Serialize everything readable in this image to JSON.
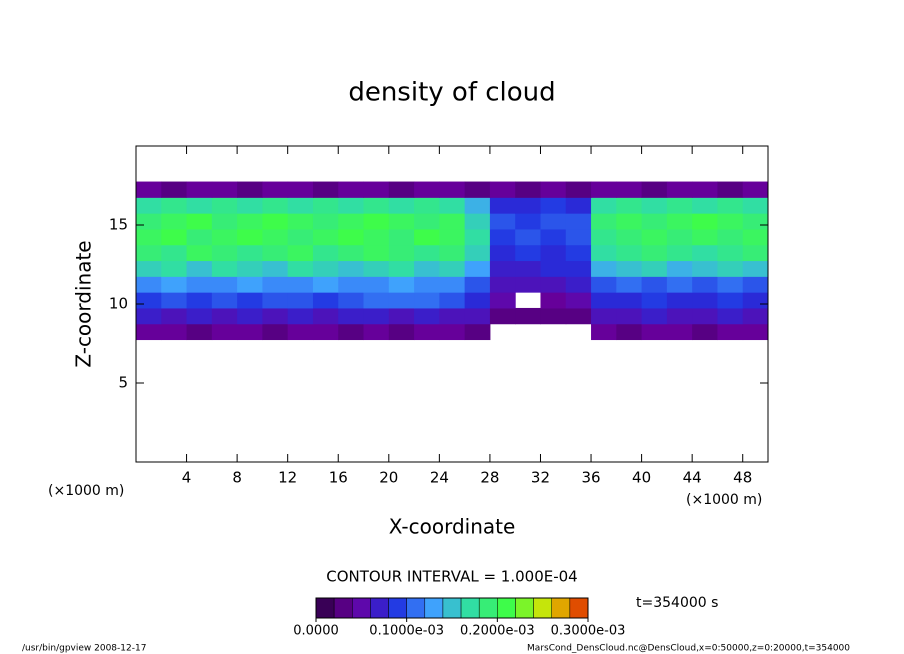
{
  "chart_data": {
    "type": "heatmap",
    "title": "density of cloud",
    "x_label": "X-coordinate",
    "y_label": "Z-coordinate",
    "x_unit": "(×1000 m)",
    "x_unit_right": "(×1000 m)",
    "xlim": [
      0,
      50
    ],
    "ylim": [
      0,
      20
    ],
    "xticks": [
      4,
      8,
      12,
      16,
      20,
      24,
      28,
      32,
      36,
      40,
      44,
      48
    ],
    "yticks": [
      5,
      10,
      15
    ],
    "x": [
      1,
      3,
      5,
      7,
      9,
      11,
      13,
      15,
      17,
      19,
      21,
      23,
      25,
      27,
      29,
      31,
      33,
      35,
      37,
      39,
      41,
      43,
      45,
      47,
      49
    ],
    "y": [
      8.25,
      9.25,
      10.25,
      11.25,
      12.25,
      13.25,
      14.25,
      15.25,
      16.25,
      17.25
    ],
    "values": [
      [
        4e-05,
        4e-05,
        3e-05,
        4e-05,
        4e-05,
        3e-05,
        4e-05,
        4e-05,
        3e-05,
        4e-05,
        3e-05,
        4e-05,
        4e-05,
        3e-05,
        null,
        null,
        null,
        null,
        4e-05,
        3e-05,
        4e-05,
        4e-05,
        3e-05,
        4e-05,
        4e-05
      ],
      [
        7e-05,
        6e-05,
        7e-05,
        6e-05,
        7e-05,
        6e-05,
        7e-05,
        6e-05,
        7e-05,
        7e-05,
        6e-05,
        7e-05,
        6e-05,
        6e-05,
        3e-05,
        3e-05,
        3e-05,
        3e-05,
        6e-05,
        6e-05,
        7e-05,
        6e-05,
        6e-05,
        7e-05,
        6e-05
      ],
      [
        9e-05,
        0.0001,
        9e-05,
        0.0001,
        9e-05,
        0.0001,
        0.0001,
        9e-05,
        0.0001,
        0.00011,
        0.00011,
        0.00011,
        0.0001,
        8e-05,
        5e-05,
        null,
        4e-05,
        5e-05,
        8e-05,
        8e-05,
        9e-05,
        8e-05,
        8e-05,
        9e-05,
        8e-05
      ],
      [
        0.00012,
        0.00013,
        0.00012,
        0.00012,
        0.00013,
        0.00012,
        0.00012,
        0.00013,
        0.00012,
        0.00012,
        0.00013,
        0.00012,
        0.00012,
        0.0001,
        6e-05,
        6e-05,
        6e-05,
        7e-05,
        0.0001,
        0.00011,
        0.0001,
        0.00011,
        0.0001,
        0.00011,
        0.0001
      ],
      [
        0.00016,
        0.00017,
        0.00015,
        0.00017,
        0.00016,
        0.00015,
        0.00017,
        0.00016,
        0.00015,
        0.00016,
        0.00017,
        0.00015,
        0.00016,
        0.00013,
        7e-05,
        7e-05,
        8e-05,
        8e-05,
        0.00014,
        0.00015,
        0.00016,
        0.00014,
        0.00015,
        0.00016,
        0.00015
      ],
      [
        0.00019,
        0.00018,
        0.0002,
        0.00019,
        0.00018,
        0.00019,
        0.0002,
        0.00018,
        0.00019,
        0.0002,
        0.00019,
        0.00018,
        0.00019,
        0.00016,
        8e-05,
        9e-05,
        8e-05,
        9e-05,
        0.00017,
        0.00018,
        0.00019,
        0.00018,
        0.00017,
        0.00018,
        0.00019
      ],
      [
        0.0002,
        0.00021,
        0.00019,
        0.0002,
        0.00021,
        0.0002,
        0.00019,
        0.0002,
        0.00021,
        0.0002,
        0.00019,
        0.00021,
        0.0002,
        0.00017,
        9e-05,
        0.0001,
        9e-05,
        0.0001,
        0.00018,
        0.00019,
        0.0002,
        0.00019,
        0.0002,
        0.00019,
        0.0002
      ],
      [
        0.00019,
        0.0002,
        0.00021,
        0.00019,
        0.0002,
        0.00021,
        0.0002,
        0.00019,
        0.0002,
        0.00021,
        0.0002,
        0.00019,
        0.0002,
        0.00016,
        0.0001,
        9e-05,
        0.0001,
        0.0001,
        0.00019,
        0.0002,
        0.00019,
        0.0002,
        0.00021,
        0.0002,
        0.00019
      ],
      [
        0.00017,
        0.00018,
        0.00017,
        0.00018,
        0.00017,
        0.00018,
        0.00017,
        0.00018,
        0.00017,
        0.00018,
        0.00017,
        0.00018,
        0.00017,
        0.00014,
        8e-05,
        8e-05,
        9e-05,
        8e-05,
        0.00017,
        0.00018,
        0.00017,
        0.00018,
        0.00017,
        0.00018,
        0.00017
      ],
      [
        4e-05,
        3e-05,
        4e-05,
        4e-05,
        3e-05,
        4e-05,
        4e-05,
        3e-05,
        4e-05,
        4e-05,
        3e-05,
        4e-05,
        4e-05,
        3e-05,
        4e-05,
        3e-05,
        4e-05,
        3e-05,
        4e-05,
        4e-05,
        3e-05,
        4e-05,
        4e-05,
        3e-05,
        4e-05
      ]
    ],
    "colormap": [
      "#2a0040",
      "#6a00a0",
      "#2030e0",
      "#40a0ff",
      "#30e0a0",
      "#40ff40",
      "#e0e000",
      "#e02000"
    ],
    "color_levels": [
      0,
      2e-05,
      4e-05,
      6e-05,
      8e-05,
      0.0001,
      0.00012,
      0.00014,
      0.00016,
      0.00018,
      0.0002,
      0.00022,
      0.00024,
      0.00026,
      0.00028,
      0.0003
    ],
    "colorbar_ticks": [
      {
        "value": 0,
        "label": "0.0000"
      },
      {
        "value": 0.0001,
        "label": "0.1000e-03"
      },
      {
        "value": 0.0002,
        "label": "0.2000e-03"
      },
      {
        "value": 0.0003,
        "label": "0.3000e-03"
      }
    ],
    "contour_interval": "CONTOUR INTERVAL = 1.000E-04",
    "time_label": "t=354000 s",
    "footer_left": "/usr/bin/gpview   2008-12-17",
    "footer_right": "MarsCond_DensCloud.nc@DensCloud,x=0:50000,z=0:20000,t=354000"
  }
}
